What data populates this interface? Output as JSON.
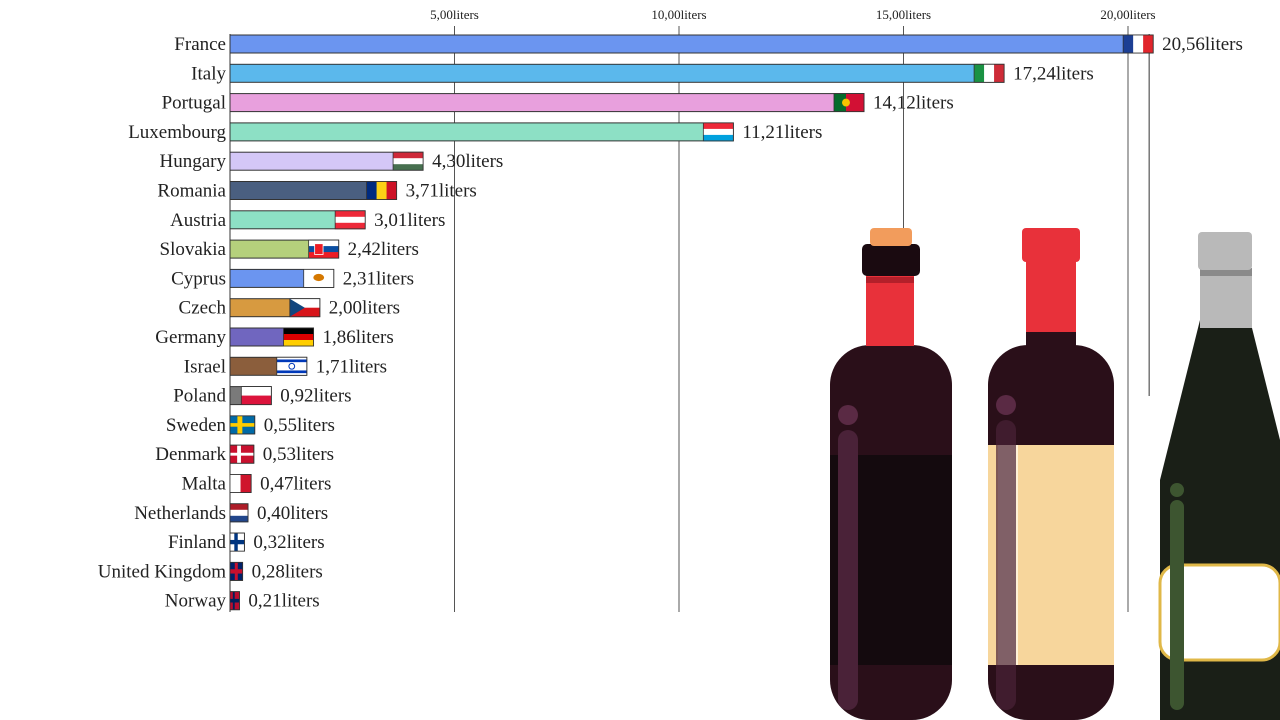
{
  "chart_data": {
    "type": "bar",
    "orientation": "horizontal",
    "title": "",
    "xlabel": "",
    "ylabel": "",
    "xlim": [
      0,
      21
    ],
    "grid": true,
    "unit": "liters",
    "ticks": [
      {
        "value": 5,
        "label": "5,00liters"
      },
      {
        "value": 10,
        "label": "10,00liters"
      },
      {
        "value": 15,
        "label": "15,00liters"
      },
      {
        "value": 20,
        "label": "20,00liters"
      }
    ],
    "categories": [
      "France",
      "Italy",
      "Portugal",
      "Luxembourg",
      "Hungary",
      "Romania",
      "Austria",
      "Slovakia",
      "Cyprus",
      "Czech",
      "Germany",
      "Israel",
      "Poland",
      "Sweden",
      "Denmark",
      "Malta",
      "Netherlands",
      "Finland",
      "United Kingdom",
      "Norway"
    ],
    "values": [
      20.56,
      17.24,
      14.12,
      11.21,
      4.3,
      3.71,
      3.01,
      2.42,
      2.31,
      2.0,
      1.86,
      1.71,
      0.92,
      0.55,
      0.53,
      0.47,
      0.4,
      0.32,
      0.28,
      0.21
    ],
    "value_labels": [
      "20,56liters",
      "17,24liters",
      "14,12liters",
      "11,21liters",
      "4,30liters",
      "3,71liters",
      "3,01liters",
      "2,42liters",
      "2,31liters",
      "2,00liters",
      "1,86liters",
      "1,71liters",
      "0,92liters",
      "0,55liters",
      "0,53liters",
      "0,47liters",
      "0,40liters",
      "0,32liters",
      "0,28liters",
      "0,21liters"
    ],
    "bar_colors": [
      "#6b95f0",
      "#5bb8ec",
      "#e8a0dd",
      "#8de0c5",
      "#d4c7f7",
      "#4a5f80",
      "#8de0c5",
      "#b5d07c",
      "#6b95f0",
      "#d79a40",
      "#7066bf",
      "#8b5e3c",
      "#7a7a7a",
      "#7a7a7a",
      "#7a7a7a",
      "#7a7a7a",
      "#7a7a7a",
      "#7a7a7a",
      "#7a7a7a",
      "#7a7a7a"
    ],
    "flags": [
      "france-flag",
      "italy-flag",
      "portugal-flag",
      "luxembourg-flag",
      "hungary-flag",
      "romania-flag",
      "austria-flag",
      "slovakia-flag",
      "cyprus-flag",
      "czech-flag",
      "germany-flag",
      "israel-flag",
      "poland-flag",
      "sweden-flag",
      "denmark-flag",
      "malta-flag",
      "netherlands-flag",
      "finland-flag",
      "united-kingdom-flag",
      "norway-flag"
    ]
  }
}
